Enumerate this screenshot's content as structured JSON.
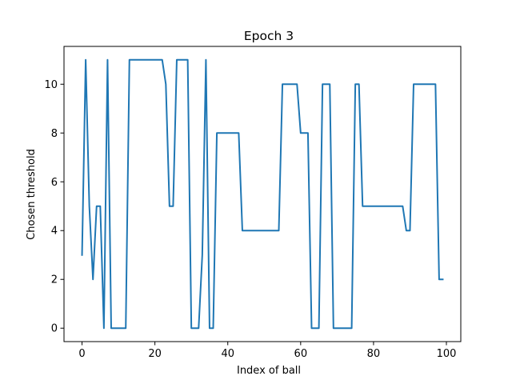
{
  "chart_data": {
    "type": "line",
    "title": "Epoch 3",
    "xlabel": "Index of ball",
    "ylabel": "Chosen threshold",
    "xlim": [
      -4.95,
      103.95
    ],
    "ylim": [
      -0.55,
      11.55
    ],
    "xticks": [
      0,
      20,
      40,
      60,
      80,
      100
    ],
    "yticks": [
      0,
      2,
      4,
      6,
      8,
      10
    ],
    "grid": false,
    "legend": "none",
    "line_color": "#1f77b4",
    "series": [
      {
        "x": [
          0,
          1,
          2,
          3,
          4,
          5,
          6,
          7,
          8,
          9,
          10,
          11,
          12,
          13,
          14,
          15,
          16,
          17,
          18,
          19,
          20,
          21,
          22,
          23,
          24,
          25,
          26,
          27,
          28,
          29,
          30,
          31,
          32,
          33,
          34,
          35,
          36,
          37,
          38,
          39,
          40,
          41,
          42,
          43,
          44,
          45,
          46,
          47,
          48,
          49,
          50,
          51,
          52,
          53,
          54,
          55,
          56,
          57,
          58,
          59,
          60,
          61,
          62,
          63,
          64,
          65,
          66,
          67,
          68,
          69,
          70,
          71,
          72,
          73,
          74,
          75,
          76,
          77,
          78,
          79,
          80,
          81,
          82,
          83,
          84,
          85,
          86,
          87,
          88,
          89,
          90,
          91,
          92,
          93,
          94,
          95,
          96,
          97,
          98,
          99
        ],
        "values": [
          3,
          11,
          5,
          2,
          5,
          5,
          0,
          11,
          0,
          0,
          0,
          0,
          0,
          11,
          11,
          11,
          11,
          11,
          11,
          11,
          11,
          11,
          11,
          10,
          5,
          5,
          11,
          11,
          11,
          11,
          0,
          0,
          0,
          3,
          11,
          0,
          0,
          8,
          8,
          8,
          8,
          8,
          8,
          8,
          4,
          4,
          4,
          4,
          4,
          4,
          4,
          4,
          4,
          4,
          4,
          10,
          10,
          10,
          10,
          10,
          8,
          8,
          8,
          0,
          0,
          0,
          10,
          10,
          10,
          0,
          0,
          0,
          0,
          0,
          0,
          10,
          10,
          5,
          5,
          5,
          5,
          5,
          5,
          5,
          5,
          5,
          5,
          5,
          5,
          4,
          4,
          10,
          10,
          10,
          10,
          10,
          10,
          10,
          2,
          2
        ]
      }
    ]
  }
}
